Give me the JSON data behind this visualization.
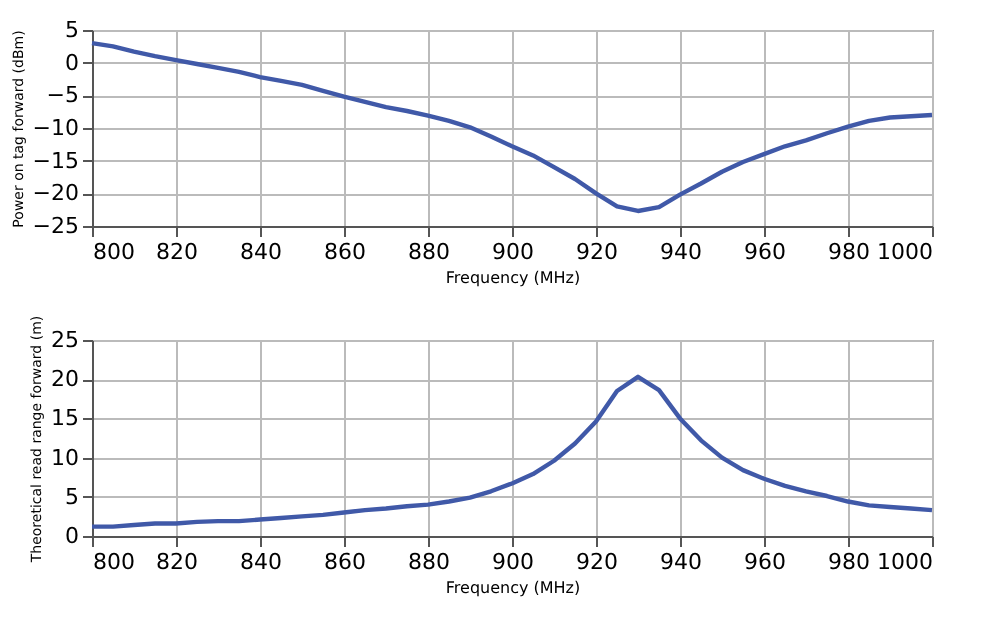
{
  "chart_data": [
    {
      "type": "line",
      "xlabel": "Frequency (MHz)",
      "ylabel": "Power on tag forward (dBm)",
      "x": [
        800,
        805,
        810,
        815,
        820,
        825,
        830,
        835,
        840,
        845,
        850,
        855,
        860,
        865,
        870,
        875,
        880,
        885,
        890,
        895,
        900,
        905,
        910,
        915,
        920,
        925,
        930,
        935,
        940,
        945,
        950,
        955,
        960,
        965,
        970,
        975,
        980,
        985,
        990,
        995,
        1000
      ],
      "series": [
        {
          "color": "#4059a8",
          "values": [
            3,
            2.5,
            1.7,
            1,
            0.4,
            -0.2,
            -0.8,
            -1.4,
            -2.2,
            -2.8,
            -3.4,
            -4.3,
            -5.2,
            -6,
            -6.8,
            -7.4,
            -8.1,
            -8.9,
            -9.9,
            -11.3,
            -12.8,
            -14.2,
            -16,
            -17.8,
            -20,
            -22,
            -22.7,
            -22.1,
            -20.2,
            -18.5,
            -16.7,
            -15.2,
            -14,
            -12.8,
            -11.9,
            -10.8,
            -9.8,
            -8.9,
            -8.4,
            -8.2,
            -8
          ]
        }
      ],
      "xlim": [
        800,
        1000
      ],
      "xticks": [
        800,
        820,
        840,
        860,
        880,
        900,
        920,
        940,
        960,
        980,
        1000
      ],
      "ylim": [
        -25,
        5
      ],
      "yticks": [
        -25,
        -20,
        -15,
        -10,
        -5,
        0,
        5
      ],
      "grid": true,
      "marker": "none",
      "line_style": "solid"
    },
    {
      "type": "line",
      "xlabel": "Frequency (MHz)",
      "ylabel": "Theoretical read range forward (m)",
      "x": [
        800,
        805,
        810,
        815,
        820,
        825,
        830,
        835,
        840,
        845,
        850,
        855,
        860,
        865,
        870,
        875,
        880,
        885,
        890,
        895,
        900,
        905,
        910,
        915,
        920,
        925,
        930,
        935,
        940,
        945,
        950,
        955,
        960,
        965,
        970,
        975,
        980,
        985,
        990,
        995,
        1000
      ],
      "series": [
        {
          "color": "#4059a8",
          "values": [
            1.2,
            1.2,
            1.4,
            1.6,
            1.6,
            1.8,
            1.9,
            1.9,
            2.1,
            2.3,
            2.5,
            2.7,
            3,
            3.3,
            3.5,
            3.8,
            4,
            4.4,
            4.9,
            5.7,
            6.7,
            7.9,
            9.6,
            11.8,
            14.6,
            18.5,
            20.3,
            18.6,
            15,
            12.2,
            10,
            8.4,
            7.3,
            6.4,
            5.7,
            5.1,
            4.4,
            3.9,
            3.7,
            3.5,
            3.3
          ]
        }
      ],
      "xlim": [
        800,
        1000
      ],
      "xticks": [
        800,
        820,
        840,
        860,
        880,
        900,
        920,
        940,
        960,
        980,
        1000
      ],
      "ylim": [
        0,
        25
      ],
      "yticks": [
        0,
        5,
        10,
        15,
        20,
        25
      ],
      "grid": true,
      "marker": "none",
      "line_style": "solid"
    }
  ]
}
